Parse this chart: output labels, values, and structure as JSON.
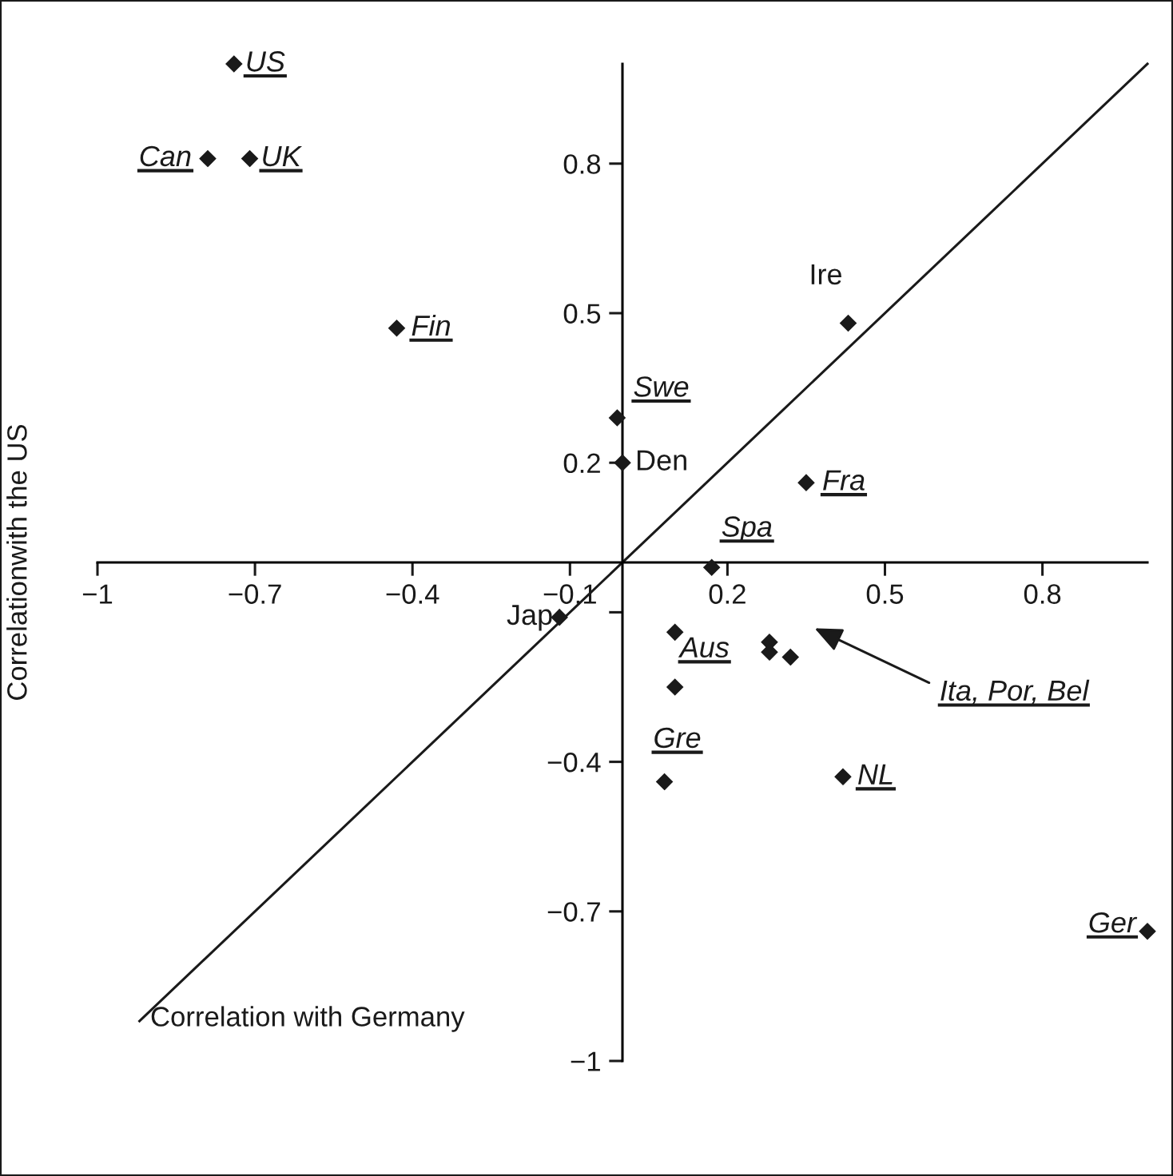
{
  "chart_data": {
    "type": "scatter",
    "xlabel": "Correlation with Germany",
    "ylabel": "Correlationwith the US",
    "xlim": [
      -1,
      1
    ],
    "ylim": [
      -1,
      1
    ],
    "xticks": [
      {
        "value": -1,
        "label": "−1"
      },
      {
        "value": -0.7,
        "label": "−0.7"
      },
      {
        "value": -0.4,
        "label": "−0.4"
      },
      {
        "value": -0.1,
        "label": "−0.1"
      },
      0.2,
      0.5,
      0.8
    ],
    "yticks": [
      0.8,
      0.5,
      0.2,
      {
        "value": -0.1,
        "label": null
      },
      {
        "value": -0.4,
        "label": "−0.4"
      },
      {
        "value": -0.7,
        "label": "−0.7"
      },
      {
        "value": -1,
        "label": "−1"
      }
    ],
    "grid": false,
    "legend": false,
    "series": [
      {
        "color": "#1a1a1a",
        "marker": "diamond",
        "x": [
          -0.74,
          -0.79,
          -0.71,
          -0.43,
          -0.01,
          0.0,
          0.43,
          0.35,
          0.17,
          -0.12,
          0.1,
          0.1,
          0.28,
          0.28,
          0.32,
          0.08,
          0.42,
          1.0
        ],
        "values": [
          1.0,
          0.81,
          0.81,
          0.47,
          0.29,
          0.2,
          0.48,
          0.16,
          -0.01,
          -0.11,
          -0.14,
          -0.25,
          -0.16,
          -0.18,
          -0.19,
          -0.44,
          -0.43,
          -0.74
        ]
      },
      {
        "type": "line",
        "color": "#1a1a1a",
        "marker": "none",
        "line_style": "solid",
        "x": [
          -0.92,
          1.0
        ],
        "values": [
          -0.92,
          1.0
        ]
      }
    ],
    "annotations": [
      {
        "text": "US",
        "x": -0.74,
        "y": 1.0
      },
      {
        "text": "Can",
        "x": -0.79,
        "y": 0.81
      },
      {
        "text": "UK",
        "x": -0.71,
        "y": 0.81
      },
      {
        "text": "Fin",
        "x": -0.43,
        "y": 0.47
      },
      {
        "text": "Swe",
        "x": -0.01,
        "y": 0.29
      },
      {
        "text": "Den",
        "x": 0.0,
        "y": 0.2
      },
      {
        "text": "Ire",
        "x": 0.43,
        "y": 0.48
      },
      {
        "text": "Fra",
        "x": 0.35,
        "y": 0.16
      },
      {
        "text": "Spa",
        "x": 0.17,
        "y": -0.01
      },
      {
        "text": "Jap",
        "x": -0.12,
        "y": -0.11
      },
      {
        "text": "Aus",
        "x": 0.1,
        "y": -0.14
      },
      {
        "text": "Gre",
        "x": 0.08,
        "y": -0.44
      },
      {
        "text": "NL",
        "x": 0.42,
        "y": -0.43
      },
      {
        "text": "Ger",
        "x": 1.0,
        "y": -0.74
      },
      "Ita, Por, Bel"
    ]
  }
}
